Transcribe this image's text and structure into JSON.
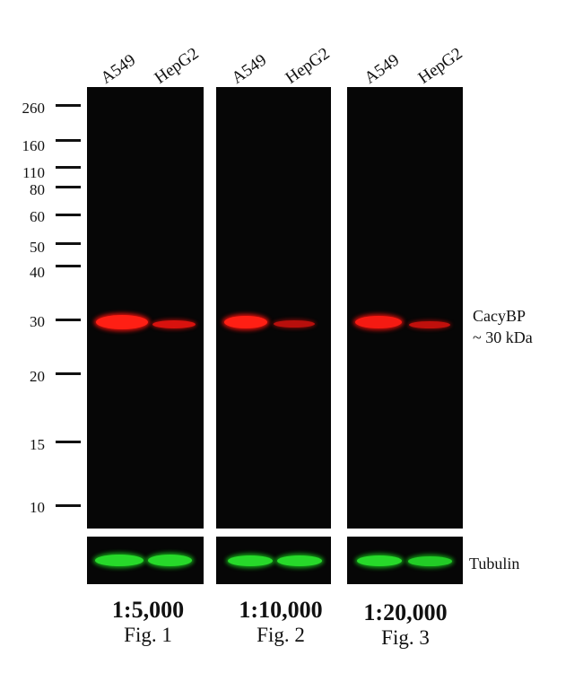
{
  "lane_labels": [
    "A549",
    "HepG2",
    "A549",
    "HepG2",
    "A549",
    "HepG2"
  ],
  "markers": [
    "260",
    "160",
    "110",
    "80",
    "60",
    "50",
    "40",
    "30",
    "20",
    "15",
    "10"
  ],
  "target_label": {
    "line1": "CacyBP",
    "line2": "~ 30 kDa"
  },
  "loading_label": "Tubulin",
  "panels": [
    {
      "dilution": "1:5,000",
      "figure": "Fig. 1"
    },
    {
      "dilution": "1:10,000",
      "figure": "Fig. 2"
    },
    {
      "dilution": "1:20,000",
      "figure": "Fig. 3"
    }
  ],
  "colors": {
    "target_band": "#ff1a14",
    "tubulin_band": "#27d92a",
    "blot_background": "#060606"
  }
}
